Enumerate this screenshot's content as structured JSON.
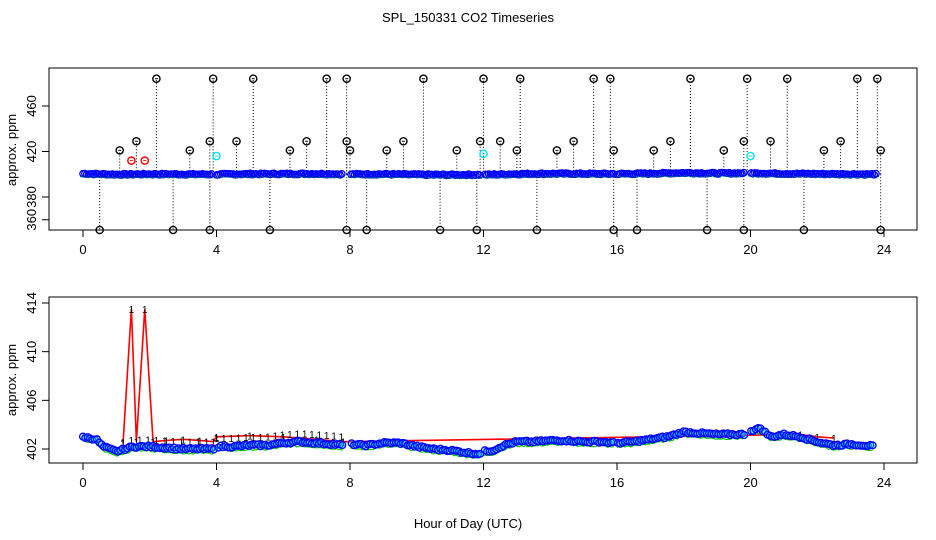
{
  "chart_data": [
    {
      "type": "scatter",
      "title": "SPL_150331  CO2 Timeseries",
      "xlabel": "",
      "ylabel": "approx. ppm",
      "xlim": [
        -2,
        26
      ],
      "ylim": [
        347,
        486
      ],
      "xticks": [
        0,
        4,
        8,
        12,
        16,
        20,
        24
      ],
      "yticks": [
        360,
        380,
        420,
        460
      ],
      "xtick_labels": [
        "0",
        "4",
        "8",
        "12",
        "16",
        "20",
        "24"
      ],
      "ytick_labels": [
        "360",
        "380",
        "420",
        "460"
      ],
      "grid": false,
      "colors": {
        "baseline": "#0000ff",
        "cyan": "#00ffff",
        "red": "#ff0000",
        "green": "#00cc00",
        "black": "#000000"
      },
      "series": [
        {
          "name": "baseline",
          "description": "blue circles near 400 ppm, dense sampling",
          "x_range": [
            0,
            23.8
          ],
          "gaps": [
            [
              3.9,
              4.0
            ],
            [
              7.8,
              8.0
            ],
            [
              11.9,
              12.0
            ],
            [
              15.9,
              16.0
            ],
            [
              19.8,
              20.0
            ]
          ],
          "profile_x": [
            0,
            1,
            2,
            3,
            4,
            5,
            6,
            7,
            8,
            9,
            10,
            11,
            12,
            13,
            14,
            15,
            16,
            17,
            18,
            19,
            20,
            21,
            22,
            23,
            23.8
          ],
          "profile_y": [
            400.5,
            399.8,
            400.1,
            400.0,
            399.9,
            400.2,
            400.3,
            400.4,
            400.0,
            400.1,
            399.7,
            399.5,
            399.6,
            400.2,
            400.5,
            400.4,
            400.3,
            400.6,
            401.2,
            400.8,
            401.0,
            400.5,
            400.3,
            400.1,
            400.0
          ]
        },
        {
          "name": "high_outliers",
          "description": "black circles with dotted stems",
          "x": [
            2.2,
            3.9,
            5.1,
            7.3,
            7.9,
            10.2,
            12.0,
            13.1,
            15.3,
            15.8,
            18.2,
            19.9,
            21.1,
            23.2,
            23.8
          ],
          "y": [
            484,
            484,
            484,
            484,
            484,
            484,
            484,
            484,
            484,
            484,
            484,
            484,
            484,
            484,
            484
          ]
        },
        {
          "name": "mid_outliers",
          "description": "black circles",
          "x": [
            1.1,
            1.6,
            3.2,
            3.8,
            4.6,
            6.2,
            6.7,
            7.9,
            8.0,
            9.1,
            9.6,
            11.2,
            11.9,
            12.5,
            13.0,
            14.2,
            14.7,
            15.9,
            17.1,
            17.6,
            19.2,
            19.8,
            20.6,
            22.2,
            22.7,
            23.9
          ],
          "y": [
            421,
            429,
            421,
            429,
            429,
            421,
            429,
            429,
            421,
            421,
            429,
            421,
            429,
            429,
            421,
            421,
            429,
            421,
            421,
            429,
            421,
            429,
            429,
            421,
            429,
            421
          ]
        },
        {
          "name": "low_outliers",
          "description": "black circles with dotted stems",
          "x": [
            0.5,
            2.7,
            3.8,
            5.6,
            7.9,
            8.5,
            10.7,
            11.8,
            13.6,
            15.9,
            16.6,
            18.7,
            19.8,
            21.6,
            23.9
          ],
          "y": [
            351,
            351,
            351,
            351,
            351,
            351,
            351,
            351,
            351,
            351,
            351,
            351,
            351,
            351,
            351
          ]
        },
        {
          "name": "red_points",
          "x": [
            1.45,
            1.85
          ],
          "y": [
            412,
            412
          ]
        },
        {
          "name": "cyan_points",
          "x": [
            4.0,
            12.0,
            20.0
          ],
          "y": [
            416,
            418,
            416
          ]
        }
      ]
    },
    {
      "type": "line",
      "title": "",
      "xlabel": "Hour of Day (UTC)",
      "ylabel": "approx. ppm",
      "xlim": [
        -2,
        26
      ],
      "ylim": [
        400.8,
        414.2
      ],
      "xticks": [
        0,
        4,
        8,
        12,
        16,
        20,
        24
      ],
      "yticks": [
        402,
        406,
        410,
        414
      ],
      "xtick_labels": [
        "0",
        "4",
        "8",
        "12",
        "16",
        "20",
        "24"
      ],
      "ytick_labels": [
        "402",
        "406",
        "410",
        "414"
      ],
      "grid": false,
      "series": [
        {
          "name": "mean_blue_circles",
          "color": "#0000ff",
          "x": [
            0,
            0.4,
            0.6,
            1.0,
            1.5,
            2.0,
            2.5,
            3.0,
            3.5,
            3.9,
            4.0,
            4.5,
            5.0,
            5.5,
            6.0,
            6.5,
            7.0,
            7.5,
            7.8,
            8.0,
            8.5,
            9.0,
            9.5,
            10.0,
            10.5,
            11.0,
            11.5,
            11.9,
            12.0,
            12.3,
            12.6,
            13.0,
            13.5,
            14.0,
            14.5,
            15.0,
            15.5,
            15.9,
            16.0,
            16.5,
            17.0,
            17.5,
            18.0,
            18.5,
            19.0,
            19.5,
            19.8,
            20.0,
            20.3,
            20.6,
            21.0,
            21.5,
            22.0,
            22.5,
            23.0,
            23.5,
            23.7
          ],
          "y": [
            403.0,
            402.8,
            402.2,
            401.8,
            402.2,
            402.2,
            402.1,
            402.0,
            402.0,
            402.0,
            402.2,
            402.2,
            402.3,
            402.3,
            402.5,
            402.6,
            402.5,
            402.4,
            402.3,
            402.4,
            402.3,
            402.5,
            402.5,
            402.2,
            402.0,
            401.9,
            401.7,
            401.6,
            401.8,
            401.9,
            402.3,
            402.6,
            402.6,
            402.7,
            402.7,
            402.6,
            402.6,
            402.5,
            402.5,
            402.6,
            402.8,
            403.0,
            403.4,
            403.3,
            403.2,
            403.2,
            403.2,
            403.5,
            403.7,
            403.0,
            403.2,
            403.0,
            402.6,
            402.3,
            402.4,
            402.3,
            402.2
          ]
        },
        {
          "name": "red_max",
          "color": "#ff0000",
          "x": [
            1.2,
            1.45,
            1.6,
            1.85,
            2.1,
            2.5,
            3.0,
            3.5,
            3.9,
            4.0,
            5.0,
            6.0,
            7.0,
            7.8,
            21.5,
            22.0,
            22.5
          ],
          "y": [
            402.5,
            413.5,
            402.6,
            413.5,
            402.6,
            402.7,
            402.8,
            402.7,
            402.6,
            403.0,
            403.1,
            403.0,
            402.8,
            402.6,
            403.2,
            403.0,
            402.9
          ]
        },
        {
          "name": "green_min",
          "color": "#00cc00"
        }
      ]
    }
  ]
}
